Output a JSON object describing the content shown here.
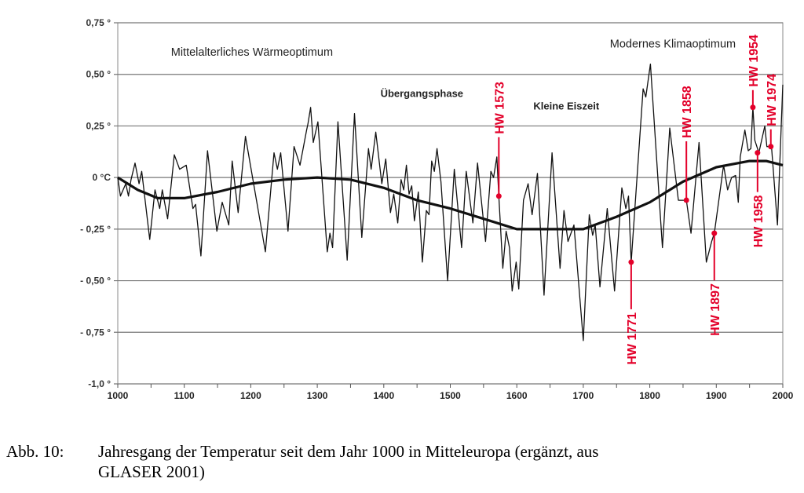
{
  "chart_data": {
    "type": "line",
    "title": "",
    "xlabel": "",
    "ylabel": "",
    "xlim": [
      1000,
      2000
    ],
    "ylim": [
      -1.0,
      0.75
    ],
    "grid": true,
    "x_ticks": [
      "1000",
      "1100",
      "1200",
      "1300",
      "1400",
      "1500",
      "1600",
      "1700",
      "1800",
      "1900",
      "2000"
    ],
    "y_ticks": [
      {
        "value": 0.75,
        "label": "0,75 °"
      },
      {
        "value": 0.5,
        "label": "0,50 °"
      },
      {
        "value": 0.25,
        "label": "0,25 °"
      },
      {
        "value": 0,
        "label": "0 °C"
      },
      {
        "value": -0.25,
        "label": "- 0,25 °"
      },
      {
        "value": -0.5,
        "label": "- 0,50 °"
      },
      {
        "value": -0.75,
        "label": "- 0,75 °"
      },
      {
        "value": -1.0,
        "label": "-1,0 °"
      }
    ],
    "series": [
      {
        "color": "#111111",
        "x": [
          1000,
          1004,
          1012,
          1016,
          1020,
          1026,
          1032,
          1036,
          1048,
          1056,
          1063,
          1067,
          1075,
          1085,
          1093,
          1103,
          1113,
          1117,
          1125,
          1135,
          1149,
          1157,
          1167,
          1172,
          1181,
          1192,
          1222,
          1235,
          1240,
          1245,
          1256,
          1265,
          1274,
          1284,
          1286,
          1290,
          1294,
          1301,
          1315,
          1319,
          1323,
          1331,
          1345,
          1356,
          1367,
          1377,
          1381,
          1388,
          1397,
          1403,
          1410,
          1415,
          1421,
          1426,
          1430,
          1434,
          1438,
          1442,
          1446,
          1452,
          1458,
          1464,
          1468,
          1472,
          1476,
          1480,
          1486,
          1496,
          1506,
          1517,
          1524,
          1534,
          1541,
          1553,
          1561,
          1565,
          1570,
          1573,
          1579,
          1584,
          1589,
          1593,
          1599,
          1603,
          1610,
          1617,
          1623,
          1631,
          1641,
          1653,
          1665,
          1671,
          1677,
          1686,
          1700,
          1709,
          1714,
          1718,
          1725,
          1736,
          1747,
          1758,
          1764,
          1768,
          1772,
          1790,
          1794,
          1801,
          1819,
          1830,
          1843,
          1855,
          1862,
          1874,
          1885,
          1893,
          1897,
          1911,
          1917,
          1923,
          1929,
          1933,
          1936,
          1943,
          1948,
          1952,
          1955,
          1958,
          1964,
          1973,
          1976,
          1983,
          1992,
          1998,
          2000
        ],
        "y": [
          0,
          -0.09,
          -0.03,
          -0.09,
          -0.01,
          0.07,
          -0.03,
          0.03,
          -0.3,
          -0.06,
          -0.15,
          -0.06,
          -0.2,
          0.11,
          0.04,
          0.06,
          -0.15,
          -0.13,
          -0.38,
          0.13,
          -0.26,
          -0.12,
          -0.23,
          0.08,
          -0.17,
          0.2,
          -0.36,
          0.12,
          0.04,
          0.12,
          -0.26,
          0.15,
          0.06,
          0.23,
          0.26,
          0.34,
          0.17,
          0.27,
          -0.36,
          -0.27,
          -0.34,
          0.27,
          -0.4,
          0.31,
          -0.29,
          0.14,
          0.04,
          0.22,
          -0.03,
          0.09,
          -0.17,
          -0.08,
          -0.22,
          -0.01,
          -0.06,
          0.06,
          -0.08,
          -0.04,
          -0.21,
          -0.07,
          -0.41,
          -0.16,
          -0.18,
          0.08,
          0.03,
          0.14,
          -0.02,
          -0.5,
          0.04,
          -0.34,
          0.03,
          -0.22,
          0.07,
          -0.31,
          0.03,
          0.0,
          0.1,
          -0.09,
          -0.44,
          -0.26,
          -0.34,
          -0.55,
          -0.41,
          -0.54,
          -0.11,
          -0.03,
          -0.18,
          0.02,
          -0.57,
          0.12,
          -0.44,
          -0.16,
          -0.31,
          -0.23,
          -0.79,
          -0.18,
          -0.28,
          -0.23,
          -0.53,
          -0.15,
          -0.55,
          -0.05,
          -0.15,
          -0.09,
          -0.41,
          0.43,
          0.39,
          0.55,
          -0.34,
          0.24,
          -0.11,
          -0.11,
          -0.27,
          0.17,
          -0.41,
          -0.31,
          -0.27,
          0.06,
          -0.06,
          0.0,
          0.01,
          -0.12,
          0.1,
          0.23,
          0.13,
          0.14,
          0.34,
          0.18,
          0.12,
          0.25,
          0.15,
          0.15,
          -0.23,
          0.28,
          0.45
        ]
      },
      {
        "color": "#111111",
        "x": [
          1000,
          1030,
          1060,
          1100,
          1150,
          1200,
          1250,
          1300,
          1350,
          1400,
          1450,
          1500,
          1550,
          1600,
          1650,
          1700,
          1750,
          1800,
          1850,
          1900,
          1950,
          1975,
          2000
        ],
        "y": [
          0,
          -0.06,
          -0.1,
          -0.1,
          -0.07,
          -0.03,
          -0.01,
          0,
          -0.01,
          -0.05,
          -0.11,
          -0.15,
          -0.2,
          -0.25,
          -0.25,
          -0.25,
          -0.19,
          -0.12,
          -0.02,
          0.05,
          0.08,
          0.08,
          0.06
        ]
      }
    ],
    "annotations": [
      {
        "text": "Mittelalterliches Wärmeoptimum",
        "x": 1080,
        "y": 0.59
      },
      {
        "text": "Übergangsphase",
        "x": 1395,
        "y": 0.39
      },
      {
        "text": "Kleine Eiszeit",
        "x": 1625,
        "y": 0.33
      },
      {
        "text": "Modernes Klimaoptimum",
        "x": 1740,
        "y": 0.63
      }
    ],
    "events": [
      {
        "label": "HW 1573",
        "x": 1573,
        "y": -0.09,
        "side": "above",
        "color": "#e3002a"
      },
      {
        "label": "HW 1771",
        "x": 1772,
        "y": -0.41,
        "side": "below",
        "color": "#e3002a"
      },
      {
        "label": "HW 1858",
        "x": 1855,
        "y": -0.11,
        "side": "above",
        "color": "#e3002a"
      },
      {
        "label": "HW 1897",
        "x": 1897,
        "y": -0.27,
        "side": "below",
        "color": "#e3002a"
      },
      {
        "label": "HW 1954",
        "x": 1955,
        "y": 0.34,
        "side": "above",
        "color": "#e3002a"
      },
      {
        "label": "HW 1958",
        "x": 1962,
        "y": 0.12,
        "side": "below",
        "color": "#e3002a"
      },
      {
        "label": "HW 1974",
        "x": 1982,
        "y": 0.15,
        "side": "above",
        "color": "#e3002a"
      }
    ]
  },
  "caption": {
    "label": "Abb. 10:",
    "line1": "Jahresgang der Temperatur seit dem Jahr 1000 in Mitteleuropa (ergänzt, aus",
    "line2": "GLASER 2001)"
  }
}
